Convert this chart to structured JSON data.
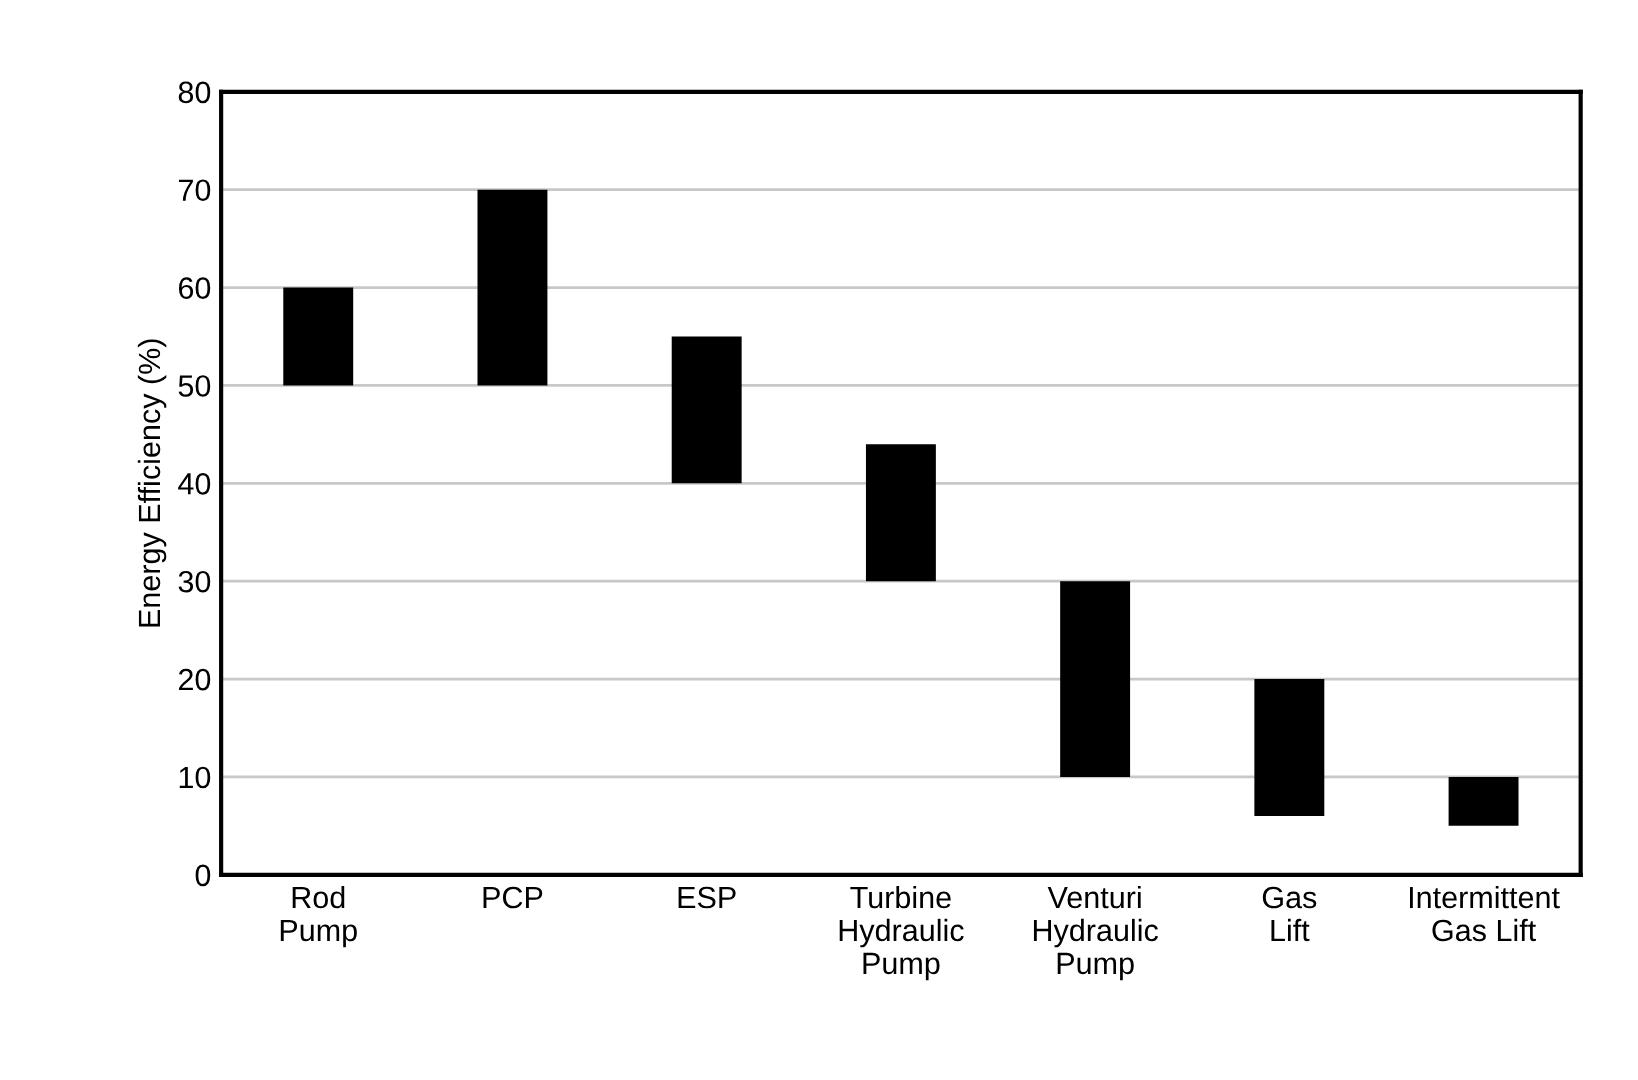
{
  "chart_data": {
    "type": "bar",
    "ylabel": "Energy Efficiency (%)",
    "categories": [
      "Rod\nPump",
      "PCP",
      "ESP",
      "Turbine\nHydraulic\nPump",
      "Venturi\nHydraulic\nPump",
      "Gas\nLift",
      "Intermittent\nGas Lift"
    ],
    "base": [
      50,
      50,
      40,
      30,
      10,
      6,
      5
    ],
    "values": [
      10,
      20,
      15,
      14,
      20,
      14,
      5
    ],
    "color": "#000000",
    "ylim": [
      0,
      80
    ],
    "yticks": [
      0,
      10,
      20,
      30,
      40,
      50,
      60,
      70,
      80
    ],
    "grid": "y"
  }
}
